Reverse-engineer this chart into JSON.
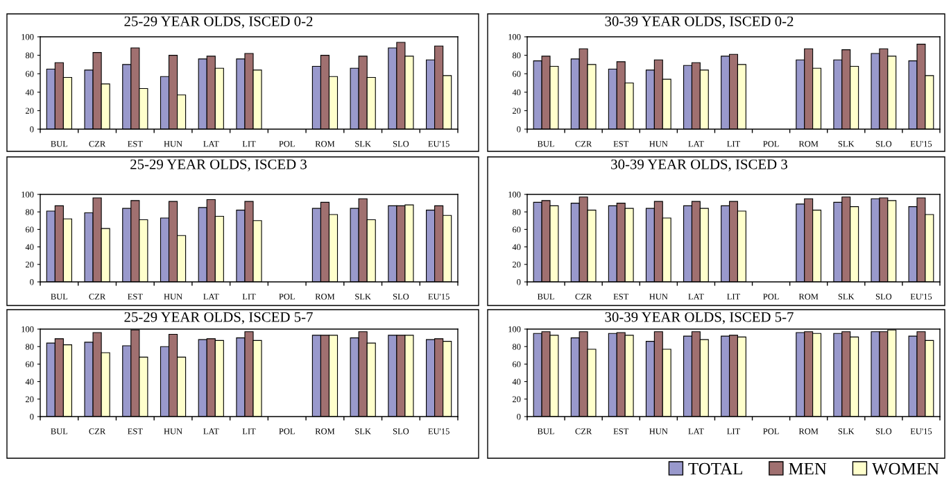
{
  "chart_data": [
    {
      "type": "bar",
      "title": "25-29 YEAR OLDS, ISCED 0-2",
      "categories": [
        "BUL",
        "CZR",
        "EST",
        "HUN",
        "LAT",
        "LIT",
        "POL",
        "ROM",
        "SLK",
        "SLO",
        "EU'15"
      ],
      "ylim": [
        0,
        100
      ],
      "yticks": [
        0,
        20,
        40,
        60,
        80,
        100
      ],
      "grid": false,
      "series": [
        {
          "color": "#9999cc",
          "values": [
            65,
            64,
            70,
            57,
            76,
            76,
            null,
            68,
            66,
            88,
            75
          ]
        },
        {
          "color": "#a07070",
          "values": [
            72,
            83,
            88,
            80,
            79,
            82,
            null,
            80,
            79,
            94,
            90
          ]
        },
        {
          "color": "#ffffcc",
          "values": [
            56,
            49,
            44,
            37,
            66,
            64,
            null,
            57,
            56,
            79,
            58
          ]
        }
      ]
    },
    {
      "type": "bar",
      "title": "30-39 YEAR OLDS, ISCED 0-2",
      "categories": [
        "BUL",
        "CZR",
        "EST",
        "HUN",
        "LAT",
        "LIT",
        "POL",
        "ROM",
        "SLK",
        "SLO",
        "EU'15"
      ],
      "ylim": [
        0,
        100
      ],
      "yticks": [
        0,
        20,
        40,
        60,
        80,
        100
      ],
      "grid": false,
      "series": [
        {
          "color": "#9999cc",
          "values": [
            74,
            76,
            65,
            64,
            69,
            79,
            null,
            75,
            75,
            82,
            74
          ]
        },
        {
          "color": "#a07070",
          "values": [
            79,
            87,
            73,
            75,
            72,
            81,
            null,
            87,
            86,
            87,
            92
          ]
        },
        {
          "color": "#ffffcc",
          "values": [
            68,
            70,
            50,
            54,
            64,
            70,
            null,
            66,
            68,
            79,
            58
          ]
        }
      ]
    },
    {
      "type": "bar",
      "title": "25-29 YEAR OLDS, ISCED 3",
      "categories": [
        "BUL",
        "CZR",
        "EST",
        "HUN",
        "LAT",
        "LIT",
        "POL",
        "ROM",
        "SLK",
        "SLO",
        "EU'15"
      ],
      "ylim": [
        0,
        100
      ],
      "yticks": [
        0,
        20,
        40,
        60,
        80,
        100
      ],
      "grid": false,
      "series": [
        {
          "color": "#9999cc",
          "values": [
            81,
            79,
            84,
            73,
            85,
            82,
            null,
            84,
            84,
            87,
            82
          ]
        },
        {
          "color": "#a07070",
          "values": [
            87,
            96,
            93,
            92,
            94,
            92,
            null,
            91,
            95,
            87,
            87
          ]
        },
        {
          "color": "#ffffcc",
          "values": [
            72,
            61,
            71,
            53,
            75,
            70,
            null,
            77,
            71,
            88,
            76
          ]
        }
      ]
    },
    {
      "type": "bar",
      "title": "30-39 YEAR OLDS, ISCED 3",
      "categories": [
        "BUL",
        "CZR",
        "EST",
        "HUN",
        "LAT",
        "LIT",
        "POL",
        "ROM",
        "SLK",
        "SLO",
        "EU'15"
      ],
      "ylim": [
        0,
        100
      ],
      "yticks": [
        0,
        20,
        40,
        60,
        80,
        100
      ],
      "grid": false,
      "series": [
        {
          "color": "#9999cc",
          "values": [
            91,
            90,
            87,
            84,
            87,
            87,
            null,
            89,
            91,
            95,
            86
          ]
        },
        {
          "color": "#a07070",
          "values": [
            93,
            97,
            90,
            92,
            92,
            92,
            null,
            95,
            97,
            96,
            96
          ]
        },
        {
          "color": "#ffffcc",
          "values": [
            87,
            82,
            84,
            73,
            84,
            81,
            null,
            82,
            86,
            93,
            77
          ]
        }
      ]
    },
    {
      "type": "bar",
      "title": "25-29 YEAR OLDS, ISCED 5-7",
      "categories": [
        "BUL",
        "CZR",
        "EST",
        "HUN",
        "LAT",
        "LIT",
        "POL",
        "ROM",
        "SLK",
        "SLO",
        "EU'15"
      ],
      "ylim": [
        0,
        100
      ],
      "yticks": [
        0,
        20,
        40,
        60,
        80,
        100
      ],
      "grid": false,
      "series": [
        {
          "color": "#9999cc",
          "values": [
            84,
            85,
            81,
            80,
            88,
            90,
            null,
            93,
            90,
            93,
            88
          ]
        },
        {
          "color": "#a07070",
          "values": [
            89,
            96,
            99,
            94,
            89,
            97,
            null,
            93,
            97,
            93,
            89
          ]
        },
        {
          "color": "#ffffcc",
          "values": [
            82,
            73,
            68,
            68,
            87,
            87,
            null,
            93,
            84,
            93,
            86
          ]
        }
      ]
    },
    {
      "type": "bar",
      "title": "30-39 YEAR OLDS, ISCED 5-7",
      "categories": [
        "BUL",
        "CZR",
        "EST",
        "HUN",
        "LAT",
        "LIT",
        "POL",
        "ROM",
        "SLK",
        "SLO",
        "EU'15"
      ],
      "ylim": [
        0,
        100
      ],
      "yticks": [
        0,
        20,
        40,
        60,
        80,
        100
      ],
      "grid": false,
      "legend": "bottom right",
      "series": [
        {
          "name": "TOTAL",
          "color": "#9999cc",
          "values": [
            95,
            90,
            95,
            86,
            92,
            92,
            null,
            96,
            95,
            97,
            92
          ]
        },
        {
          "name": "MEN",
          "color": "#a07070",
          "values": [
            97,
            97,
            96,
            97,
            97,
            93,
            null,
            97,
            97,
            97,
            97
          ]
        },
        {
          "name": "WOMEN",
          "color": "#ffffcc",
          "values": [
            93,
            77,
            93,
            77,
            88,
            91,
            null,
            95,
            91,
            99,
            87
          ]
        }
      ]
    }
  ]
}
